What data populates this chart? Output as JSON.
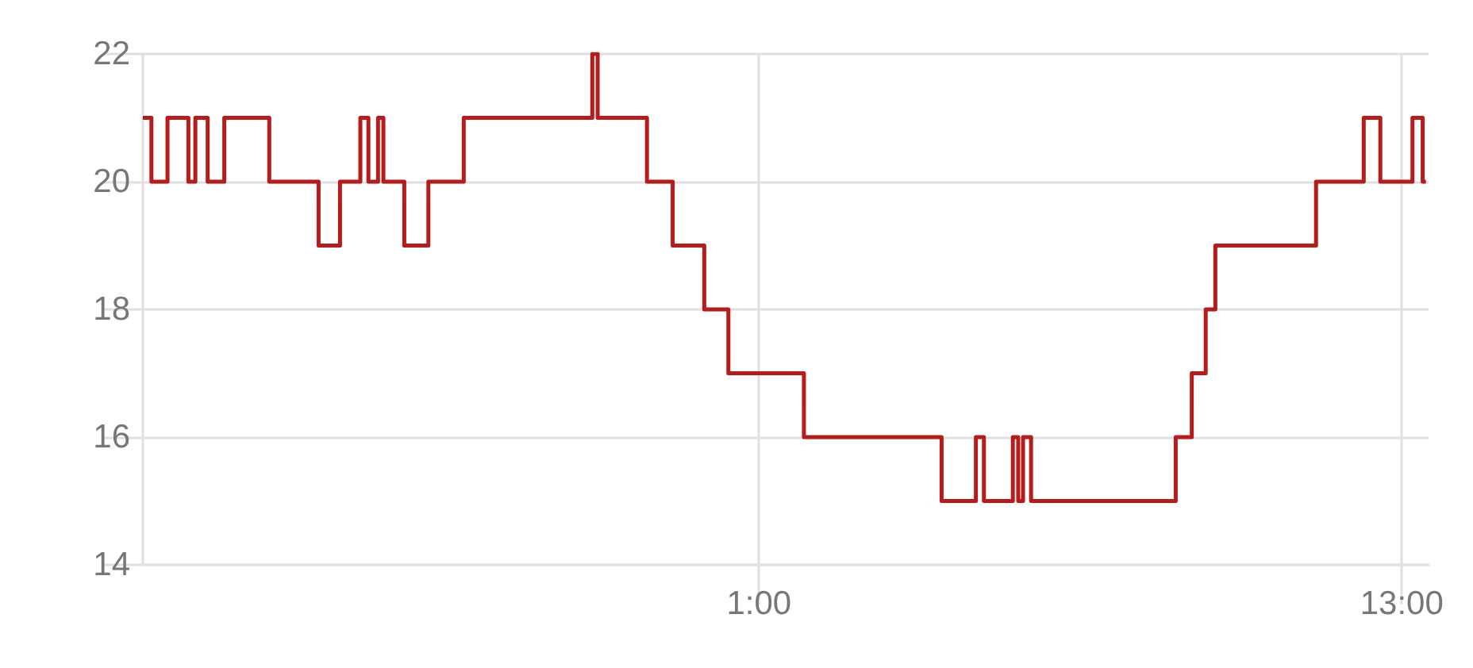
{
  "chart_data": {
    "type": "step",
    "x": [
      -10.5,
      -10.34,
      -10.04,
      -9.65,
      -9.52,
      -9.29,
      -8.98,
      -8.14,
      -7.22,
      -6.82,
      -6.44,
      -6.29,
      -6.11,
      -6.01,
      -5.62,
      -5.17,
      -4.51,
      -2.11,
      -2.01,
      -1.09,
      -0.61,
      -0.02,
      0.43,
      1.84,
      4.41,
      5.05,
      5.2,
      5.74,
      5.84,
      5.93,
      6.08,
      8.78,
      9.08,
      9.34,
      9.52,
      11.4,
      12.29,
      12.6,
      13.2,
      13.39,
      13.45
    ],
    "series": [
      {
        "color": "#b71c1c",
        "values": [
          21,
          20,
          21,
          20,
          21,
          20,
          21,
          20,
          19,
          20,
          21,
          20,
          21,
          20,
          19,
          20,
          21,
          22,
          21,
          20,
          19,
          18,
          17,
          16,
          15,
          16,
          15,
          16,
          15,
          16,
          15,
          16,
          17,
          18,
          19,
          20,
          21,
          20,
          21,
          20,
          20
        ]
      }
    ],
    "xlim": [
      -10.5,
      13.5
    ],
    "xticks": [
      {
        "value": 1,
        "label": "1:00"
      },
      {
        "value": 13,
        "label": "13:00"
      }
    ],
    "ylim": [
      14,
      22
    ],
    "yticks": [
      14,
      16,
      18,
      20,
      22
    ],
    "grid": true,
    "marker": "none",
    "line_style": "solid"
  }
}
